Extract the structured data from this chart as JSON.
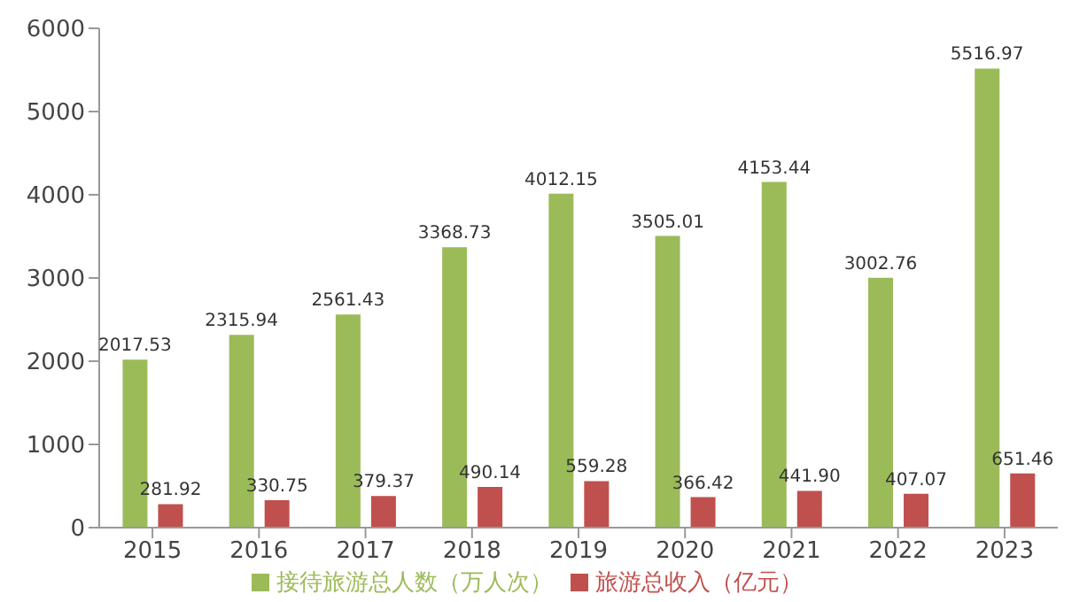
{
  "chart_data": {
    "type": "bar",
    "categories": [
      "2015",
      "2016",
      "2017",
      "2018",
      "2019",
      "2020",
      "2021",
      "2022",
      "2023"
    ],
    "series": [
      {
        "name": "接待旅游总人数（万人次）",
        "color": "#9bbb59",
        "values": [
          2017.53,
          2315.94,
          2561.43,
          3368.73,
          4012.15,
          3505.01,
          4153.44,
          3002.76,
          5516.97
        ],
        "value_labels": [
          "2017.53",
          "2315.94",
          "2561.43",
          "3368.73",
          "4012.15",
          "3505.01",
          "4153.44",
          "3002.76",
          "5516.97"
        ]
      },
      {
        "name": "旅游总收入（亿元）",
        "color": "#c0504d",
        "values": [
          281.92,
          330.75,
          379.37,
          490.14,
          559.28,
          366.42,
          441.9,
          407.07,
          651.46
        ],
        "value_labels": [
          "281.92",
          "330.75",
          "379.37",
          "490.14",
          "559.28",
          "366.42",
          "441.90",
          "407.07",
          "651.46"
        ]
      }
    ],
    "ylim": [
      0,
      6000
    ],
    "yticks": [
      0,
      1000,
      2000,
      3000,
      4000,
      5000,
      6000
    ],
    "legend": "bottom"
  }
}
